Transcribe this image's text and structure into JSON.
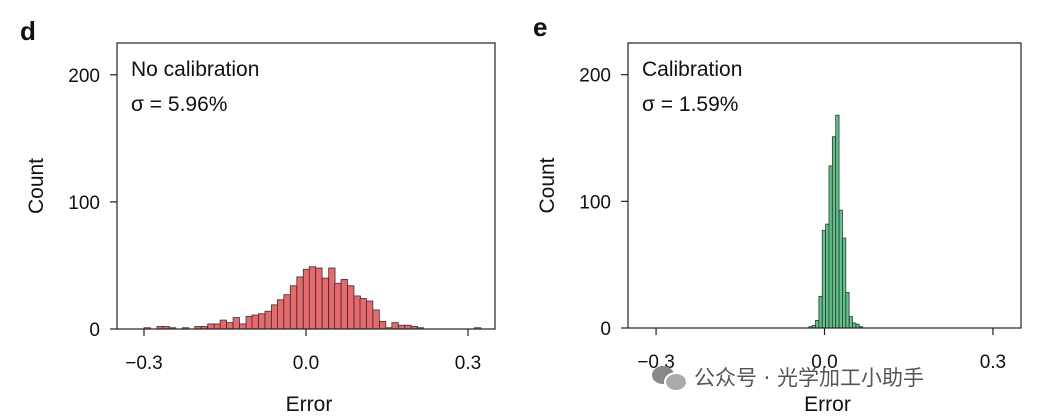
{
  "chart_data": [
    {
      "type": "bar",
      "panel_label": "d",
      "annotations": [
        "No calibration",
        "σ = 5.96%"
      ],
      "xlabel": "Error",
      "ylabel": "Count",
      "xlim": [
        -0.35,
        0.35
      ],
      "ylim": [
        0,
        225
      ],
      "xticks": [
        -0.3,
        0.0,
        0.3
      ],
      "xtick_labels": [
        "−0.3",
        "0.0",
        "0.3"
      ],
      "yticks": [
        0,
        100,
        200
      ],
      "ytick_labels": [
        "0",
        "100",
        "200"
      ],
      "color": "#e8696b",
      "bin_width": 0.0118,
      "bins_x": [
        -0.3,
        -0.288,
        -0.276,
        -0.265,
        -0.253,
        -0.241,
        -0.229,
        -0.217,
        -0.206,
        -0.194,
        -0.182,
        -0.17,
        -0.159,
        -0.147,
        -0.135,
        -0.123,
        -0.111,
        -0.1,
        -0.088,
        -0.076,
        -0.064,
        -0.053,
        -0.041,
        -0.029,
        -0.017,
        -0.005,
        0.006,
        0.018,
        0.03,
        0.042,
        0.053,
        0.065,
        0.077,
        0.089,
        0.1,
        0.112,
        0.124,
        0.136,
        0.148,
        0.159,
        0.171,
        0.183,
        0.195,
        0.206,
        0.312
      ],
      "counts": [
        1,
        0,
        2,
        2,
        1,
        0,
        1,
        0,
        2,
        2,
        4,
        4,
        7,
        5,
        9,
        4,
        10,
        11,
        12,
        14,
        19,
        23,
        27,
        34,
        41,
        47,
        49,
        48,
        40,
        48,
        36,
        39,
        34,
        26,
        24,
        22,
        15,
        6,
        1,
        5,
        3,
        3,
        2,
        1,
        1
      ]
    },
    {
      "type": "bar",
      "panel_label": "e",
      "annotations": [
        "Calibration",
        "σ = 1.59%"
      ],
      "xlabel": "Error",
      "ylabel": "Count",
      "xlim": [
        -0.35,
        0.35
      ],
      "ylim": [
        0,
        225
      ],
      "xticks": [
        -0.3,
        0.0,
        0.3
      ],
      "xtick_labels": [
        "−0.3",
        "0.0",
        "0.3"
      ],
      "yticks": [
        0,
        100,
        200
      ],
      "ytick_labels": [
        "0",
        "100",
        "200"
      ],
      "color": "#5cc58a",
      "bin_width": 0.0059,
      "bins_x": [
        -0.028,
        -0.022,
        -0.016,
        -0.01,
        -0.004,
        0.002,
        0.008,
        0.014,
        0.02,
        0.026,
        0.032,
        0.038,
        0.044,
        0.05,
        0.056,
        0.062
      ],
      "counts": [
        1,
        2,
        6,
        25,
        77,
        82,
        128,
        151,
        168,
        93,
        71,
        28,
        9,
        4,
        3,
        1
      ]
    }
  ],
  "watermark": {
    "text": "公众号 · 光学加工小助手",
    "icon": "wechat-icon"
  }
}
